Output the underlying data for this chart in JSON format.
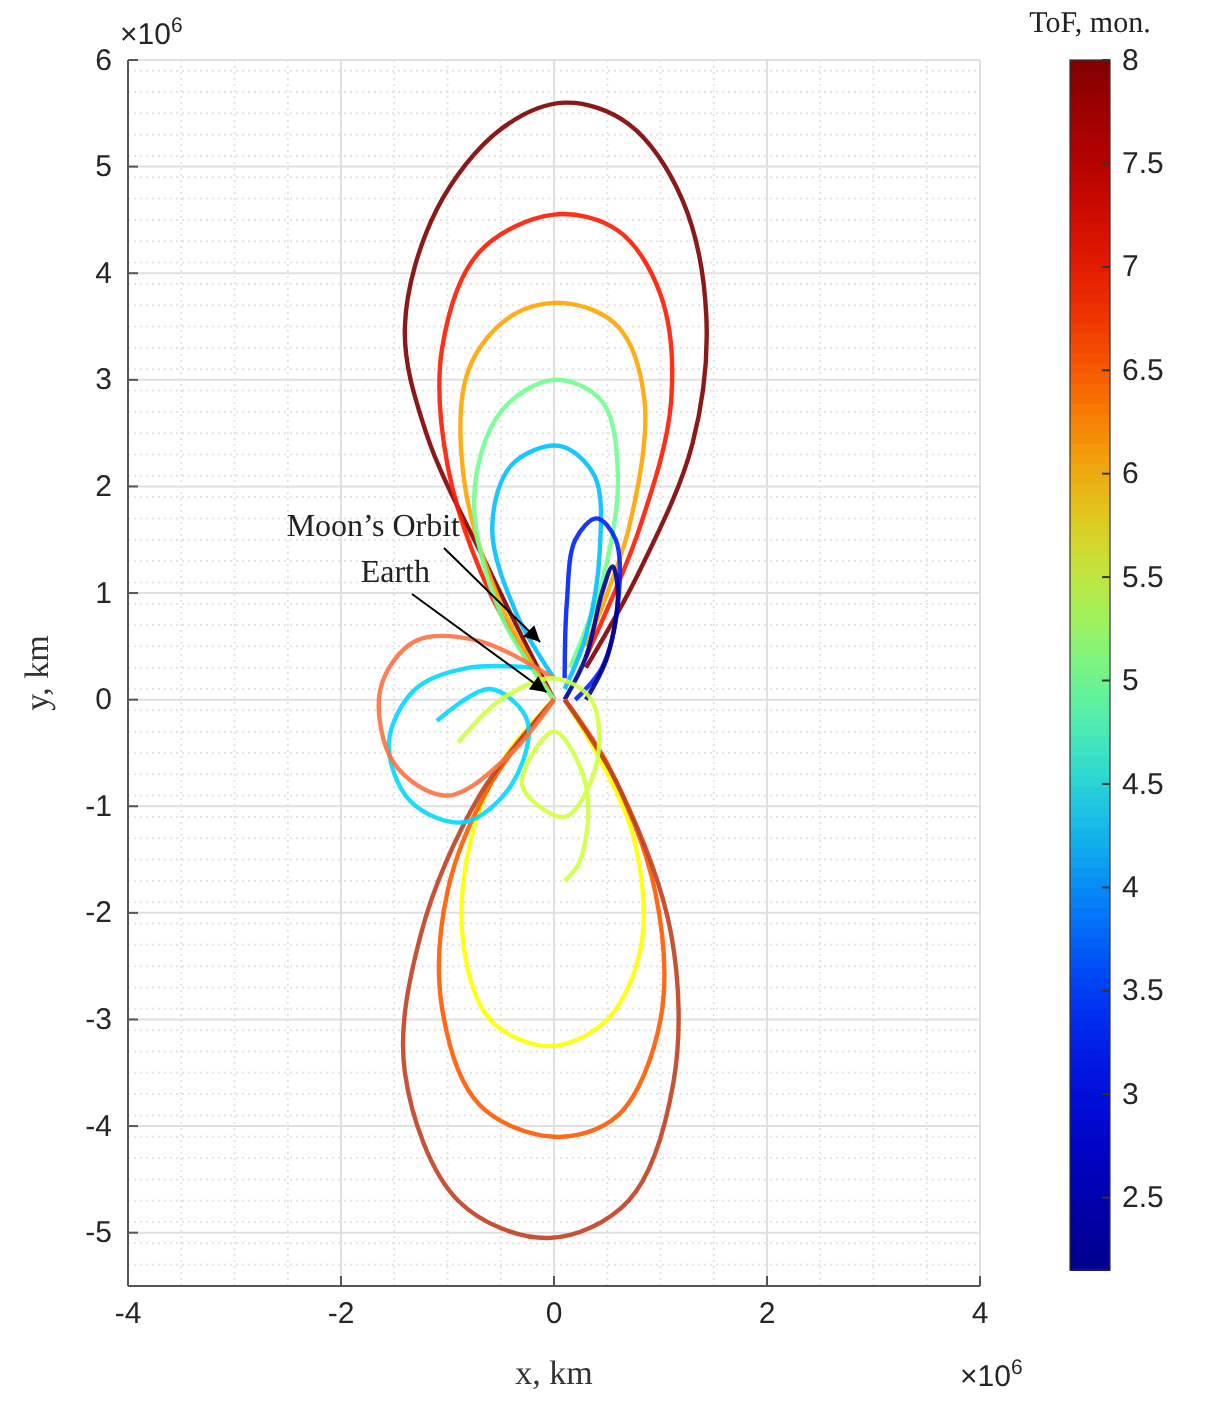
{
  "chart_data": {
    "type": "line",
    "xlabel": "x, km",
    "ylabel": "y, km",
    "clabel": "ToF, mon.",
    "xlim": [
      -4,
      4
    ],
    "xticks": [
      -4,
      -2,
      0,
      2,
      4
    ],
    "ylim": [
      -5.5,
      6
    ],
    "yticks": [
      -5,
      -4,
      -3,
      -2,
      -1,
      0,
      1,
      2,
      3,
      4,
      5,
      6
    ],
    "clim": [
      2.15,
      8
    ],
    "cticks": [
      2.5,
      3,
      3.5,
      4,
      4.5,
      5,
      5.5,
      6,
      6.5,
      7,
      7.5,
      8
    ],
    "grid": true,
    "annotations": [
      "×10$^{6}$",
      "×10$^{6}$",
      {
        "text": "Moon’s Orbit",
        "x": -0.13,
        "y": 0.54
      },
      {
        "text": "Earth",
        "x": -0.07,
        "y": 0.07
      }
    ],
    "series": [
      {
        "color": "#800000",
        "x": [
          0,
          -0.6,
          -1.2,
          -1.4,
          -1.1,
          -0.5,
          0.1,
          0.7,
          1.2,
          1.43,
          1.3,
          0.8,
          0.3
        ],
        "values": [
          0,
          1.2,
          2.5,
          3.5,
          4.6,
          5.35,
          5.6,
          5.4,
          4.7,
          3.6,
          2.4,
          1.2,
          0.3
        ]
      },
      {
        "color": "#ff1a00",
        "x": [
          0,
          -0.6,
          -1.0,
          -1.05,
          -0.7,
          0,
          0.6,
          1.0,
          1.1,
          0.8,
          0.3
        ],
        "values": [
          0,
          1.0,
          2.2,
          3.3,
          4.2,
          4.55,
          4.4,
          3.8,
          2.8,
          1.6,
          0.4
        ]
      },
      {
        "color": "#ffa500",
        "x": [
          0,
          -0.5,
          -0.85,
          -0.8,
          -0.4,
          0.1,
          0.6,
          0.85,
          0.7,
          0.3
        ],
        "values": [
          0,
          0.9,
          2.1,
          3.1,
          3.6,
          3.72,
          3.5,
          2.8,
          1.6,
          0.5
        ]
      },
      {
        "color": "#70ff90",
        "x": [
          0,
          -0.5,
          -0.75,
          -0.5,
          0,
          0.45,
          0.6,
          0.45,
          0.15
        ],
        "values": [
          0,
          0.8,
          1.9,
          2.7,
          3.0,
          2.8,
          2.1,
          1.1,
          0.3
        ]
      },
      {
        "color": "#00c0ff",
        "x": [
          0,
          -0.35,
          -0.58,
          -0.4,
          0.05,
          0.38,
          0.43,
          0.3,
          0.1
        ],
        "values": [
          0.2,
          0.8,
          1.6,
          2.2,
          2.38,
          2.1,
          1.4,
          0.6,
          0.1
        ]
      },
      {
        "color": "#0020ff",
        "x": [
          0.1,
          0.12,
          0.2,
          0.4,
          0.58,
          0.6,
          0.45,
          0.2
        ],
        "values": [
          0.2,
          0.9,
          1.5,
          1.7,
          1.5,
          0.9,
          0.3,
          0
        ]
      },
      {
        "color": "#00008f",
        "x": [
          0.1,
          0.3,
          0.45,
          0.55,
          0.6,
          0.5,
          0.3
        ],
        "values": [
          0,
          0.4,
          1.0,
          1.25,
          1.0,
          0.4,
          0
        ]
      },
      {
        "color": "#ffff00",
        "x": [
          0,
          -0.5,
          -0.8,
          -0.85,
          -0.6,
          -0.05,
          0.5,
          0.82,
          0.75,
          0.4,
          0.1
        ],
        "values": [
          0,
          -0.6,
          -1.4,
          -2.3,
          -3.0,
          -3.25,
          -3.0,
          -2.3,
          -1.3,
          -0.5,
          0
        ]
      },
      {
        "color": "#ff5a00",
        "x": [
          0,
          -0.6,
          -1.0,
          -1.05,
          -0.7,
          0,
          0.6,
          1.0,
          0.95,
          0.5,
          0.1
        ],
        "values": [
          0,
          -0.8,
          -1.8,
          -2.9,
          -3.8,
          -4.1,
          -3.9,
          -3.0,
          -1.8,
          -0.6,
          0
        ]
      },
      {
        "color": "#c04020",
        "x": [
          0,
          -0.7,
          -1.25,
          -1.4,
          -0.9,
          -0.05,
          0.7,
          1.12,
          1.1,
          0.6,
          0.1
        ],
        "values": [
          0,
          -0.9,
          -2.2,
          -3.5,
          -4.7,
          -5.05,
          -4.7,
          -3.6,
          -2.2,
          -0.8,
          0
        ]
      },
      {
        "color": "#00d8ff",
        "x": [
          -0.2,
          -0.8,
          -1.3,
          -1.55,
          -1.35,
          -0.85,
          -0.4,
          -0.25,
          -0.6,
          -1.1
        ],
        "values": [
          0.3,
          0.3,
          0.1,
          -0.4,
          -0.95,
          -1.15,
          -0.8,
          -0.2,
          0.1,
          -0.2
        ]
      },
      {
        "color": "#ff7040",
        "x": [
          0,
          -0.7,
          -1.3,
          -1.63,
          -1.5,
          -1.0,
          -0.4,
          0
        ],
        "values": [
          0.2,
          0.55,
          0.55,
          0.1,
          -0.6,
          -0.9,
          -0.5,
          0
        ]
      },
      {
        "color": "#d0ff40",
        "x": [
          -0.9,
          -0.5,
          0,
          0.35,
          0.4,
          0.1,
          -0.3,
          0,
          0.3,
          0.25,
          0.1
        ],
        "values": [
          -0.4,
          0,
          0.2,
          0,
          -0.6,
          -1.1,
          -0.8,
          -0.3,
          -0.8,
          -1.5,
          -1.7
        ]
      }
    ]
  }
}
